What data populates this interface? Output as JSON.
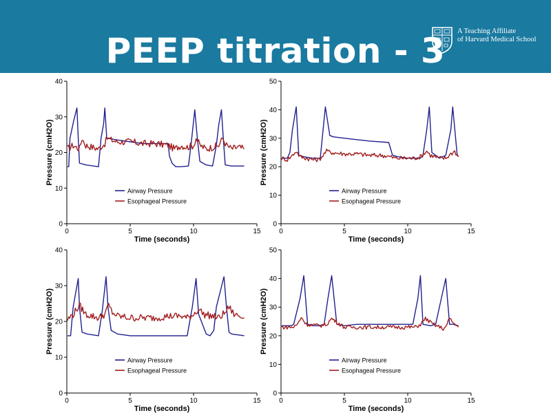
{
  "slide": {
    "title": "PEEP titration - 3",
    "affiliate_line1": "A Teaching Affiliate",
    "affiliate_line2": "of Harvard Medical School",
    "header_color": "#1a7aa0"
  },
  "colors": {
    "airway": "#1f1f8f",
    "esophageal": "#a01c1c"
  },
  "chart_data": [
    {
      "type": "line",
      "position": "top-left",
      "xlabel": "Time (seconds)",
      "ylabel": "Pressure (cmH2O)",
      "xlim": [
        0,
        15
      ],
      "ylim": [
        0,
        40
      ],
      "xticks": [
        0,
        5,
        10,
        15
      ],
      "yticks": [
        0,
        10,
        20,
        30,
        40
      ],
      "legend": [
        "Airway Pressure",
        "Esophageal Pressure"
      ],
      "legend_position": "bottom-left",
      "series": [
        {
          "name": "Airway Pressure",
          "x": [
            0.05,
            0.15,
            0.25,
            0.55,
            0.8,
            0.9,
            1.0,
            1.5,
            2.5,
            2.7,
            2.9,
            3.0,
            3.15,
            3.5,
            4.0,
            5.0,
            6.0,
            7.0,
            8.0,
            8.1,
            8.3,
            8.6,
            9.0,
            9.6,
            9.8,
            10.1,
            10.3,
            10.5,
            11.0,
            11.5,
            11.8,
            12.0,
            12.2,
            12.35,
            12.5,
            13.0,
            13.5,
            14.0
          ],
          "y": [
            16,
            16,
            24,
            29,
            32.5,
            24,
            17,
            16.5,
            16,
            24,
            28,
            32.5,
            24,
            23.8,
            23.5,
            23,
            22.5,
            22.5,
            22.5,
            19,
            17,
            16,
            16,
            16.2,
            22,
            32,
            24,
            17.5,
            16.5,
            16.2,
            22,
            28,
            32,
            24,
            16.5,
            16.2,
            16.2,
            16.2
          ]
        },
        {
          "name": "Esophageal Pressure",
          "x": [
            0.05,
            0.5,
            1.0,
            1.2,
            1.5,
            2.0,
            2.5,
            2.8,
            3.0,
            3.2,
            3.5,
            4.0,
            5.0,
            6.0,
            7.0,
            8.0,
            8.5,
            9.0,
            9.5,
            10.0,
            10.2,
            10.5,
            11.0,
            11.5,
            12.0,
            12.3,
            12.6,
            13.0,
            13.5,
            14.0
          ],
          "y": [
            21,
            22,
            21,
            24,
            22,
            21.5,
            21,
            22,
            22.5,
            24,
            23.5,
            23,
            23,
            22.5,
            22.5,
            22,
            21,
            22,
            21.5,
            22,
            24,
            22,
            21,
            21.5,
            22,
            24,
            22,
            21,
            21.5,
            21
          ],
          "noise": 1.0
        }
      ]
    },
    {
      "type": "line",
      "position": "top-right",
      "xlabel": "Time (seconds)",
      "ylabel": "Pressure (cmH2O)",
      "xlim": [
        0,
        15
      ],
      "ylim": [
        0,
        50
      ],
      "xticks": [
        0,
        5,
        10,
        15
      ],
      "yticks": [
        0,
        10,
        20,
        30,
        40,
        50
      ],
      "legend": [
        "Airway Pressure",
        "Esophageal Pressure"
      ],
      "legend_position": "bottom-left",
      "series": [
        {
          "name": "Airway Pressure",
          "x": [
            0.05,
            0.5,
            0.7,
            0.9,
            1.2,
            1.4,
            1.8,
            2.5,
            3.1,
            3.3,
            3.5,
            3.85,
            4.1,
            5.0,
            6.0,
            7.0,
            8.5,
            8.8,
            9.2,
            10.0,
            11.0,
            11.2,
            11.5,
            11.7,
            11.9,
            12.5,
            13.0,
            13.4,
            13.55,
            13.9,
            14.0
          ],
          "y": [
            23,
            23,
            25,
            33,
            41,
            24,
            23.5,
            23,
            23,
            32,
            41,
            31,
            30.5,
            30,
            29.5,
            29,
            28.5,
            24,
            23.5,
            23,
            23,
            24,
            33,
            41,
            25,
            23,
            24,
            33,
            41,
            24,
            23.5
          ]
        },
        {
          "name": "Esophageal Pressure",
          "x": [
            0.05,
            0.5,
            0.9,
            1.2,
            1.5,
            2.0,
            2.5,
            3.0,
            3.3,
            3.6,
            4.0,
            5.0,
            6.0,
            7.0,
            8.0,
            8.6,
            9.0,
            10.0,
            10.5,
            11.0,
            11.5,
            11.8,
            12.5,
            13.0,
            13.4,
            13.7,
            14.0
          ],
          "y": [
            23,
            22.5,
            24,
            25.5,
            23.5,
            23,
            22.5,
            22.5,
            24,
            25.5,
            25,
            24.5,
            24.5,
            24,
            24,
            23.5,
            23,
            23,
            23,
            23.5,
            25.5,
            24,
            23,
            23,
            24.5,
            25.5,
            23.5
          ],
          "noise": 0.8
        }
      ]
    },
    {
      "type": "line",
      "position": "bottom-left",
      "xlabel": "Time (seconds)",
      "ylabel": "Pressure (cmH2O)",
      "xlim": [
        0,
        15
      ],
      "ylim": [
        0,
        40
      ],
      "xticks": [
        0,
        5,
        10,
        15
      ],
      "yticks": [
        0,
        10,
        20,
        30,
        40
      ],
      "legend": [
        "Airway Pressure",
        "Esophageal Pressure"
      ],
      "legend_position": "bottom-left",
      "series": [
        {
          "name": "Airway Pressure",
          "x": [
            0.05,
            0.3,
            0.5,
            0.9,
            1.0,
            1.2,
            1.6,
            2.5,
            2.8,
            3.1,
            3.25,
            3.5,
            4.0,
            5.0,
            6.0,
            7.0,
            8.0,
            9.0,
            9.5,
            9.9,
            10.2,
            10.4,
            11.0,
            11.3,
            11.6,
            11.8,
            12.4,
            12.6,
            12.8,
            13.0,
            14.0
          ],
          "y": [
            16,
            16,
            24,
            32,
            24,
            17,
            16.5,
            16,
            23,
            32.5,
            24,
            17.5,
            16.5,
            16,
            16,
            16,
            16,
            16,
            16,
            24,
            32,
            22,
            16.5,
            16,
            17.5,
            24,
            32.5,
            24,
            17,
            16.5,
            16
          ]
        },
        {
          "name": "Esophageal Pressure",
          "x": [
            0.05,
            0.5,
            1.0,
            1.5,
            2.0,
            2.5,
            3.0,
            3.3,
            3.6,
            4.0,
            5.0,
            6.0,
            7.0,
            8.0,
            9.0,
            9.5,
            10.0,
            10.4,
            10.8,
            11.5,
            12.0,
            12.5,
            12.8,
            13.2,
            13.6,
            14.0
          ],
          "y": [
            20.5,
            22,
            24.5,
            22,
            21.5,
            21,
            22,
            24.5,
            22.5,
            21.5,
            21,
            21,
            21,
            21.5,
            21.5,
            21,
            22,
            23.5,
            22,
            21.5,
            21,
            22.5,
            24,
            22,
            21.5,
            21
          ],
          "noise": 1.0
        }
      ]
    },
    {
      "type": "line",
      "position": "bottom-right",
      "xlabel": "Time (seconds)",
      "ylabel": "Pressure (cmH2O)",
      "xlim": [
        0,
        15
      ],
      "ylim": [
        0,
        50
      ],
      "xticks": [
        0,
        5,
        10,
        15
      ],
      "yticks": [
        0,
        10,
        20,
        30,
        40,
        50
      ],
      "legend": [
        "Airway Pressure",
        "Esophageal Pressure"
      ],
      "legend_position": "bottom-left",
      "series": [
        {
          "name": "Airway Pressure",
          "x": [
            0.05,
            0.8,
            1.0,
            1.5,
            1.8,
            2.1,
            2.5,
            3.0,
            3.4,
            3.7,
            4.0,
            4.4,
            5.0,
            6.0,
            7.0,
            8.0,
            9.0,
            10.0,
            10.4,
            10.8,
            11.0,
            11.2,
            11.8,
            12.2,
            12.6,
            13.0,
            13.3,
            13.6,
            14.0
          ],
          "y": [
            23.5,
            23.5,
            24,
            33,
            41,
            24,
            23.5,
            23.5,
            24,
            33,
            41,
            24,
            23.5,
            24,
            24,
            24,
            24,
            24,
            24,
            33,
            41,
            24,
            23.5,
            24,
            32,
            40,
            24,
            24,
            23.5
          ]
        },
        {
          "name": "Esophageal Pressure",
          "x": [
            0.05,
            1.0,
            1.3,
            1.6,
            2.0,
            3.0,
            3.6,
            4.0,
            4.5,
            5.0,
            6.0,
            7.0,
            8.0,
            9.0,
            10.0,
            10.6,
            11.0,
            11.4,
            12.0,
            12.8,
            13.0,
            13.3,
            13.6,
            14.0
          ],
          "y": [
            23,
            23,
            24,
            26.5,
            24,
            23.5,
            24,
            26,
            24.5,
            23,
            23,
            23,
            23,
            23,
            23,
            23,
            24,
            26,
            24,
            22.5,
            23,
            26,
            24.5,
            23
          ],
          "noise": 0.7
        }
      ]
    }
  ]
}
